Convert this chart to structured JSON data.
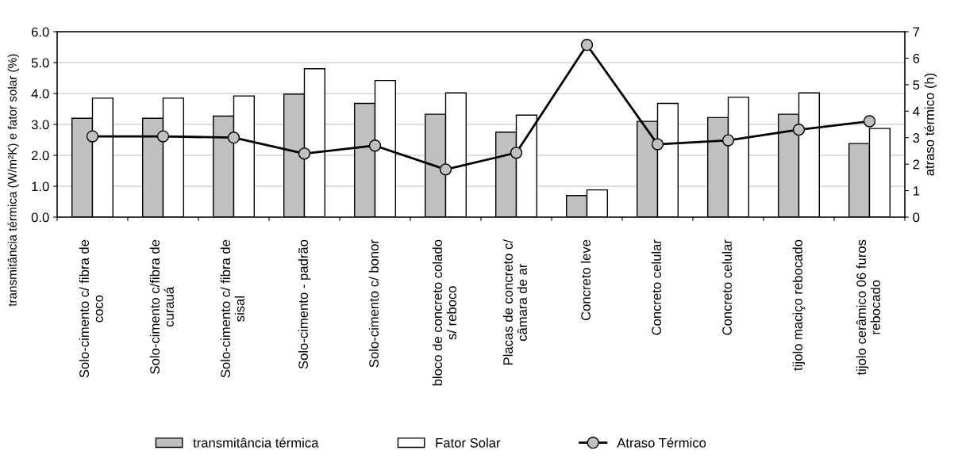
{
  "chart_data": {
    "type": "bar",
    "categories": [
      "Solo-cimento c/ fibra de\ncoco",
      "Solo-cimento c/fibra de\ncurauá",
      "Solo-cimento c/ fibra de\nsisal",
      "Solo-cimento - padrão",
      "Solo-cimento c/ bonor",
      "bloco de concreto colado\ns/ reboco",
      "Placas de concreto c/\ncâmara de ar",
      "Concreto leve",
      "Concreto celular",
      "Concreto celular",
      "tijolo maciço rebocado",
      "tijolo cerâmico 06 furos\nrebocado"
    ],
    "series": [
      {
        "name": "transmitância térmica",
        "color": "#c0c0c0",
        "values": [
          3.2,
          3.2,
          3.27,
          3.98,
          3.68,
          3.33,
          2.75,
          0.7,
          3.1,
          3.22,
          3.33,
          2.38
        ]
      },
      {
        "name": "Fator Solar",
        "color": "#ffffff",
        "values": [
          3.85,
          3.85,
          3.92,
          4.8,
          4.42,
          4.02,
          3.3,
          0.88,
          3.68,
          3.88,
          4.02,
          2.87
        ]
      },
      {
        "name": "Atraso Térmico",
        "type": "line",
        "axis": "y2",
        "color": "#000000",
        "marker": "circle",
        "values": [
          3.05,
          3.05,
          3.0,
          2.4,
          2.7,
          1.8,
          2.43,
          6.5,
          2.75,
          2.9,
          3.3,
          3.62
        ]
      }
    ],
    "ylabel": "transmitância térmica (W/m²K) e fator solar (%)",
    "y2label": "atraso térmico (h)",
    "ylim": [
      0,
      6
    ],
    "yticks": [
      {
        "value": 0,
        "label": "0.0"
      },
      {
        "value": 1,
        "label": "1.0"
      },
      {
        "value": 2,
        "label": "2.0"
      },
      {
        "value": 3,
        "label": "3.0"
      },
      {
        "value": 4,
        "label": "4.0"
      },
      {
        "value": 5,
        "label": "5.0"
      },
      {
        "value": 6,
        "label": "6.0"
      }
    ],
    "y2lim": [
      0,
      7
    ],
    "y2ticks": [
      0,
      1,
      2,
      3,
      4,
      5,
      6,
      7
    ],
    "grid": "y",
    "legend": "bottom"
  }
}
